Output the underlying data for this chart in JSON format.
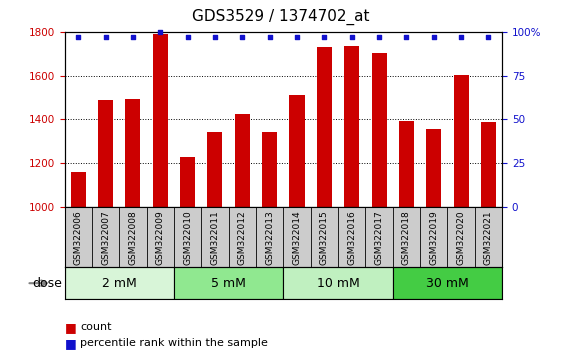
{
  "title": "GDS3529 / 1374702_at",
  "categories": [
    "GSM322006",
    "GSM322007",
    "GSM322008",
    "GSM322009",
    "GSM322010",
    "GSM322011",
    "GSM322012",
    "GSM322013",
    "GSM322014",
    "GSM322015",
    "GSM322016",
    "GSM322017",
    "GSM322018",
    "GSM322019",
    "GSM322020",
    "GSM322021"
  ],
  "counts": [
    1160,
    1490,
    1495,
    1790,
    1230,
    1345,
    1425,
    1345,
    1510,
    1730,
    1735,
    1705,
    1395,
    1355,
    1605,
    1390
  ],
  "percentile": [
    97,
    97,
    97,
    100,
    97,
    97,
    97,
    97,
    97,
    97,
    97,
    97,
    97,
    97,
    97,
    97
  ],
  "bar_color": "#cc0000",
  "dot_color": "#1111cc",
  "ylim_left": [
    1000,
    1800
  ],
  "ylim_right": [
    0,
    100
  ],
  "yticks_left": [
    1000,
    1200,
    1400,
    1600,
    1800
  ],
  "yticks_right": [
    0,
    25,
    50,
    75,
    100
  ],
  "ytick_labels_right": [
    "0",
    "25",
    "50",
    "75",
    "100%"
  ],
  "dose_groups": [
    {
      "label": "2 mM",
      "start": 0,
      "end": 4,
      "color": "#d8f5d8"
    },
    {
      "label": "5 mM",
      "start": 4,
      "end": 8,
      "color": "#90e890"
    },
    {
      "label": "10 mM",
      "start": 8,
      "end": 12,
      "color": "#c0f0c0"
    },
    {
      "label": "30 mM",
      "start": 12,
      "end": 16,
      "color": "#44cc44"
    }
  ],
  "legend_count_color": "#cc0000",
  "legend_dot_color": "#1111cc",
  "dose_label": "dose",
  "title_fontsize": 11,
  "tick_fontsize": 7.5,
  "bar_width": 0.55
}
